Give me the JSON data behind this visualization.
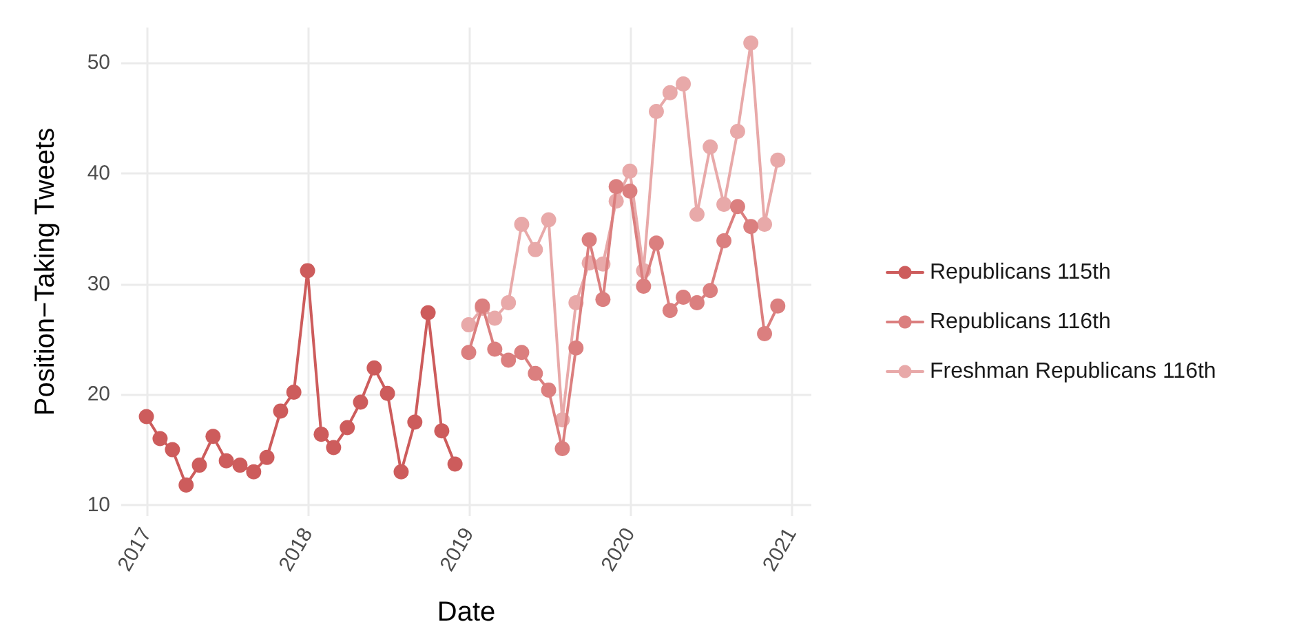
{
  "chart_data": {
    "type": "line",
    "xlabel": "Date",
    "ylabel": "Position−Taking Tweets",
    "xlim": [
      "2016-11-05",
      "2021-02-15"
    ],
    "xticks": [
      "2017",
      "2018",
      "2019",
      "2020",
      "2021"
    ],
    "ylim": [
      9,
      53.2
    ],
    "yticks": [
      10,
      20,
      30,
      40,
      50
    ],
    "grid": true,
    "legend": "right",
    "marker": "circle",
    "line_style": "solid",
    "series": [
      {
        "name": "Republicans 115th",
        "color": "#cd5c5c",
        "x": [
          "2017-01",
          "2017-02",
          "2017-03",
          "2017-04",
          "2017-05",
          "2017-06",
          "2017-07",
          "2017-08",
          "2017-09",
          "2017-10",
          "2017-11",
          "2017-12",
          "2018-01",
          "2018-02",
          "2018-03",
          "2018-04",
          "2018-05",
          "2018-06",
          "2018-07",
          "2018-08",
          "2018-09",
          "2018-10",
          "2018-11",
          "2018-12"
        ],
        "values": [
          18.0,
          16.0,
          15.0,
          11.8,
          13.6,
          16.2,
          14.0,
          13.6,
          13.0,
          14.3,
          18.5,
          20.2,
          31.2,
          16.4,
          15.2,
          17.0,
          19.3,
          22.4,
          20.1,
          13.0,
          17.5,
          27.4,
          16.7,
          13.7
        ]
      },
      {
        "name": "Republicans 116th",
        "color": "#db7f7f",
        "x": [
          "2019-01",
          "2019-02",
          "2019-03",
          "2019-04",
          "2019-05",
          "2019-06",
          "2019-07",
          "2019-08",
          "2019-09",
          "2019-10",
          "2019-11",
          "2019-12",
          "2020-01",
          "2020-02",
          "2020-03",
          "2020-04",
          "2020-05",
          "2020-06",
          "2020-07",
          "2020-08",
          "2020-09",
          "2020-10",
          "2020-11",
          "2020-12"
        ],
        "values": [
          23.8,
          28.0,
          24.1,
          23.1,
          23.8,
          21.9,
          20.4,
          15.1,
          24.2,
          34.0,
          28.6,
          38.8,
          38.4,
          29.8,
          33.7,
          27.6,
          28.8,
          28.3,
          29.4,
          33.9,
          37.0,
          35.2,
          25.5,
          28.0
        ]
      },
      {
        "name": "Freshman Republicans 116th",
        "color": "#e8a9a9",
        "x": [
          "2019-01",
          "2019-02",
          "2019-03",
          "2019-04",
          "2019-05",
          "2019-06",
          "2019-07",
          "2019-08",
          "2019-09",
          "2019-10",
          "2019-11",
          "2019-12",
          "2020-01",
          "2020-02",
          "2020-03",
          "2020-04",
          "2020-05",
          "2020-06",
          "2020-07",
          "2020-08",
          "2020-09",
          "2020-10",
          "2020-11",
          "2020-12"
        ],
        "values": [
          26.3,
          27.8,
          26.9,
          28.3,
          35.4,
          33.1,
          35.8,
          17.7,
          28.3,
          31.9,
          31.8,
          37.5,
          40.2,
          31.2,
          45.6,
          47.3,
          48.1,
          36.3,
          42.4,
          37.2,
          43.8,
          51.8,
          35.4,
          41.2
        ]
      }
    ]
  }
}
